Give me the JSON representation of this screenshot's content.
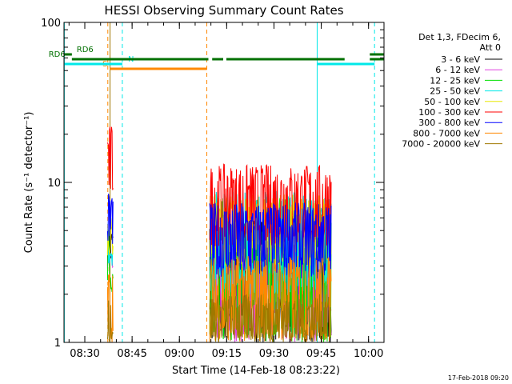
{
  "chart_data": {
    "type": "line",
    "title": "HESSI Observing Summary Count Rates",
    "xlabel": "Start Time (14-Feb-18 08:23:22)",
    "ylabel": "Count Rate (s⁻¹ detector⁻¹)",
    "x_unit": "minutes after 08:23:22",
    "xlim": [
      0,
      101.5
    ],
    "ylim": [
      1,
      100
    ],
    "y_scale": "log",
    "x_ticks": [
      {
        "label": "08:30",
        "x": 6.6
      },
      {
        "label": "08:45",
        "x": 21.6
      },
      {
        "label": "09:00",
        "x": 36.6
      },
      {
        "label": "09:15",
        "x": 51.6
      },
      {
        "label": "09:30",
        "x": 66.6
      },
      {
        "label": "09:45",
        "x": 81.6
      },
      {
        "label": "10:00",
        "x": 96.6
      }
    ],
    "y_ticks": [
      {
        "label": "1",
        "value": 1
      },
      {
        "label": "10",
        "value": 10
      },
      {
        "label": "100",
        "value": 100
      }
    ],
    "legend_header": [
      "Det 1,3, FDecim 6,",
      "Att 0"
    ],
    "legend_position": "right",
    "series": [
      {
        "name": "3 - 6 keV",
        "color": "#000000",
        "segments": [
          {
            "x0": 13.8,
            "x1": 15.6,
            "low": 3.0,
            "high": 5.2
          },
          {
            "x0": 46.2,
            "x1": 84.8,
            "low": 1.0,
            "high": 6.5
          }
        ]
      },
      {
        "name": "6 - 12 keV",
        "color": "#e040e0",
        "segments": [
          {
            "x0": 13.8,
            "x1": 15.6,
            "low": 2.8,
            "high": 3.6
          },
          {
            "x0": 46.2,
            "x1": 84.8,
            "low": 1.0,
            "high": 4.5
          }
        ]
      },
      {
        "name": "12 - 25 keV",
        "color": "#00e000",
        "segments": [
          {
            "x0": 13.8,
            "x1": 15.6,
            "low": 2.0,
            "high": 5.5
          },
          {
            "x0": 46.2,
            "x1": 84.8,
            "low": 1.0,
            "high": 8.0
          }
        ]
      },
      {
        "name": "25 - 50 keV",
        "color": "#00e8e8",
        "segments": [
          {
            "x0": 13.8,
            "x1": 15.6,
            "low": 3.0,
            "high": 6.5
          },
          {
            "x0": 46.2,
            "x1": 84.8,
            "low": 2.0,
            "high": 9.0
          }
        ]
      },
      {
        "name": "50 - 100 keV",
        "color": "#e8e800",
        "segments": [
          {
            "x0": 13.8,
            "x1": 15.6,
            "low": 3.5,
            "high": 6.0
          },
          {
            "x0": 46.2,
            "x1": 84.8,
            "low": 3.0,
            "high": 8.5
          }
        ]
      },
      {
        "name": "100 - 300 keV",
        "color": "#ff0000",
        "segments": [
          {
            "x0": 13.8,
            "x1": 15.6,
            "low": 8.0,
            "high": 23.0
          },
          {
            "x0": 46.2,
            "x1": 84.8,
            "low": 4.0,
            "high": 13.0
          }
        ]
      },
      {
        "name": "300 - 800 keV",
        "color": "#0000ff",
        "segments": [
          {
            "x0": 13.8,
            "x1": 15.6,
            "low": 4.0,
            "high": 9.0
          },
          {
            "x0": 46.2,
            "x1": 84.8,
            "low": 2.5,
            "high": 7.5
          }
        ]
      },
      {
        "name": "800 - 7000 keV",
        "color": "#ff8800",
        "segments": [
          {
            "x0": 13.8,
            "x1": 15.6,
            "low": 1.0,
            "high": 3.0
          },
          {
            "x0": 46.2,
            "x1": 84.8,
            "low": 1.0,
            "high": 3.5
          }
        ]
      },
      {
        "name": "7000 - 20000 keV",
        "color": "#a07800",
        "segments": [
          {
            "x0": 13.8,
            "x1": 15.6,
            "low": 1.0,
            "high": 2.0
          },
          {
            "x0": 46.2,
            "x1": 84.8,
            "low": 1.0,
            "high": 2.0
          }
        ]
      }
    ],
    "vertical_markers": [
      {
        "x": 0.1,
        "color": "#00e8e8",
        "style": "solid"
      },
      {
        "x": 14.6,
        "color": "#a07800",
        "style": "solid"
      },
      {
        "x": 13.9,
        "color": "#ff8800",
        "style": "dashed"
      },
      {
        "x": 18.5,
        "color": "#00e8e8",
        "style": "dashed"
      },
      {
        "x": 45.3,
        "color": "#ff8800",
        "style": "dashed"
      },
      {
        "x": 80.3,
        "color": "#00e8e8",
        "style": "solid"
      },
      {
        "x": 98.5,
        "color": "#00e8e8",
        "style": "dashed"
      }
    ],
    "flag_bars": [
      {
        "label": "S",
        "color": "#ff8800",
        "y": 86,
        "label_x": 12.2,
        "segments": [
          [
            14.6,
            45.3
          ]
        ]
      },
      {
        "label": "N",
        "color": "#00e8e8",
        "y": 80,
        "label_x": 20.3,
        "segments": [
          [
            0.1,
            18.5
          ],
          [
            80.3,
            98.5
          ]
        ]
      },
      {
        "label": "RD6",
        "color": "#007000",
        "y": 74,
        "label_x": -4.9,
        "segments": [
          [
            2.5,
            45.8
          ],
          [
            47.0,
            50.5
          ],
          [
            51.5,
            89.0
          ],
          [
            97.0,
            101.5
          ]
        ]
      },
      {
        "label": "RD6",
        "color": "#007000",
        "y": 68,
        "label_x": 4.0,
        "segments": [
          [
            0,
            2.5
          ],
          [
            97.0,
            101.5
          ]
        ]
      }
    ]
  },
  "footer": {
    "timestamp": "17-Feb-2018 09:20"
  }
}
